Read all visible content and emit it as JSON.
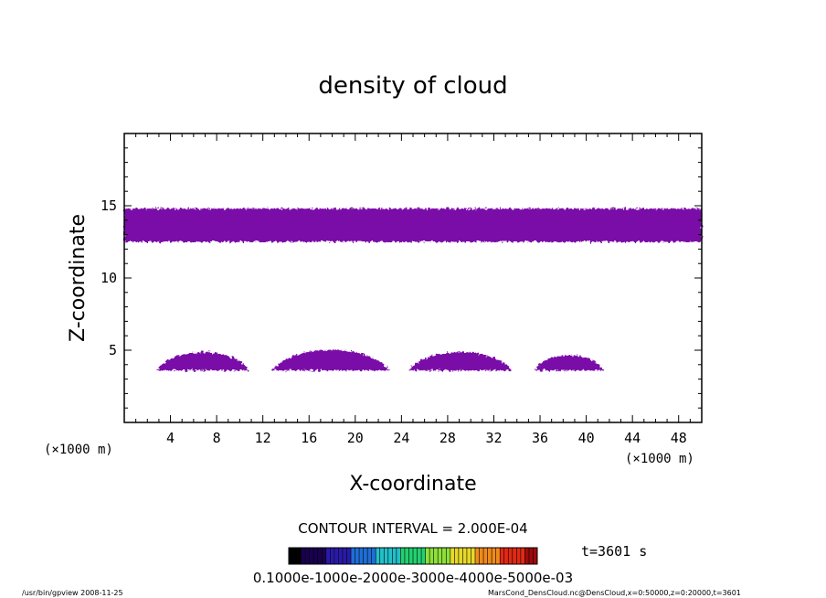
{
  "chart_data": {
    "type": "contour",
    "title": "density of cloud",
    "xlabel": "X-coordinate",
    "ylabel": "Z-coordinate",
    "x_unit_left": "(×1000 m)",
    "x_unit_right": "(×1000 m)",
    "xlim": [
      0,
      50
    ],
    "ylim": [
      0,
      20
    ],
    "xticks": [
      4,
      8,
      12,
      16,
      20,
      24,
      28,
      32,
      36,
      40,
      44,
      48
    ],
    "yticks": [
      5,
      10,
      15
    ],
    "fill_color": "#7a0aa8",
    "cloud_regions": [
      {
        "x_start": 0,
        "x_end": 50,
        "z_bottom": 12.5,
        "z_top": 14.8,
        "shape": "band"
      },
      {
        "x_start": 2.8,
        "x_end": 10.8,
        "z_bottom": 3.6,
        "z_top": 5.3,
        "shape": "dome"
      },
      {
        "x_start": 12.8,
        "x_end": 23.0,
        "z_bottom": 3.6,
        "z_top": 5.5,
        "shape": "dome"
      },
      {
        "x_start": 24.6,
        "x_end": 33.6,
        "z_bottom": 3.6,
        "z_top": 5.3,
        "shape": "dome"
      },
      {
        "x_start": 35.5,
        "x_end": 41.5,
        "z_bottom": 3.6,
        "z_top": 5.0,
        "shape": "dome"
      }
    ],
    "contour_interval": "CONTOUR INTERVAL = 2.000E-04",
    "time_label": "t=3601 s",
    "colorbar_labels": "0.1000e-1000e-2000e-3000e-4000e-5000e-03",
    "colorbar_colors": [
      "#000000",
      "#1a0050",
      "#2a1aa8",
      "#1e6ed8",
      "#22c0c8",
      "#22d070",
      "#8ee03a",
      "#e6d82a",
      "#f08a1a",
      "#e02a14",
      "#a00a0a"
    ]
  },
  "footer": {
    "left": "/usr/bin/gpview   2008-11-25",
    "right": "MarsCond_DensCloud.nc@DensCloud,x=0:50000,z=0:20000,t=3601"
  }
}
